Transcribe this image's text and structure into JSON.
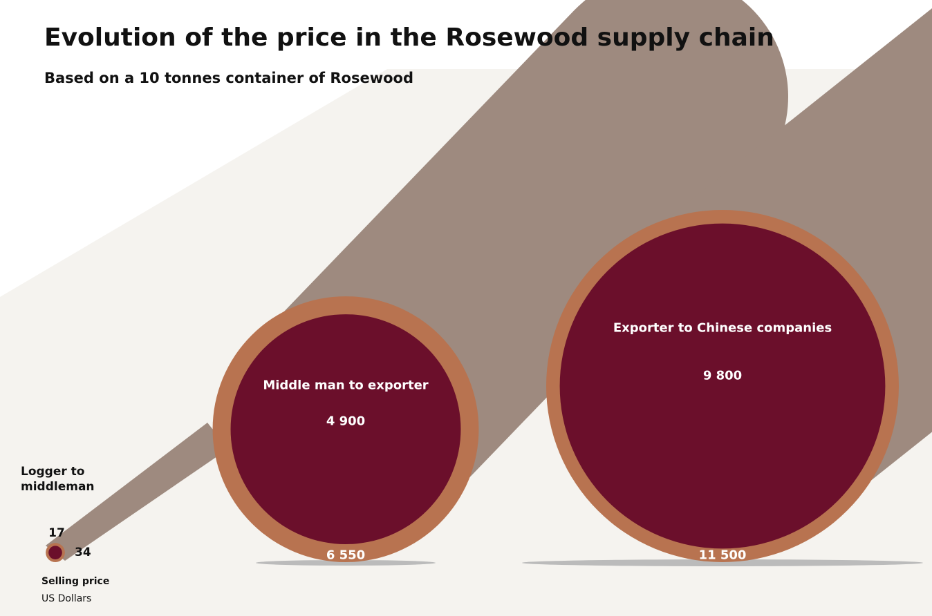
{
  "chart_data": {
    "type": "bubble",
    "title": "Evolution of the price in the Rosewood supply chain",
    "subtitle": "Based on a 10 tonnes container of Rosewood",
    "categories": [
      "Logger to middleman",
      "Middle man to exporter",
      "Exporter to Chinese companies"
    ],
    "series": [
      {
        "name": "Selling price",
        "color": "#b87350",
        "values": [
          34,
          6550,
          11500
        ],
        "value_labels": [
          "34",
          "6 550",
          "11 500"
        ]
      },
      {
        "color": "#6b0f2b",
        "values": [
          17,
          4900,
          9800
        ],
        "value_labels": [
          "17",
          "4 900",
          "9 800"
        ]
      }
    ],
    "unit": "US Dollars"
  }
}
